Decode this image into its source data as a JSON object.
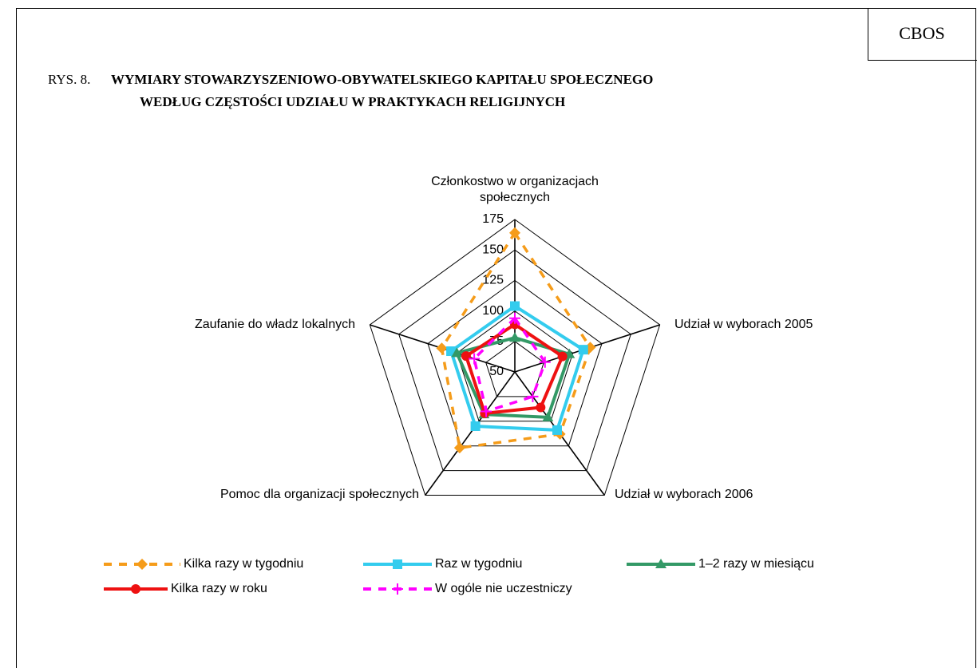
{
  "source": "CBOS",
  "chart_data": {
    "type": "radar",
    "figure_label": "RYS. 8.",
    "title": [
      "WYMIARY STOWARZYSZENIOWO-OBYWATELSKIEGO KAPITAŁU SPOŁECZNEGO",
      "WEDŁUG CZĘSTOŚCI UDZIAŁU W PRAKTYKACH RELIGIJNYCH"
    ],
    "categories": [
      "Członkostwo w organizacjach społecznych",
      "Udział w wyborach 2005",
      "Udział w wyborach 2006",
      "Pomoc dla organizacji społecznych",
      "Zaufanie do władz lokalnych"
    ],
    "ylim": [
      50,
      175
    ],
    "yticks": [
      50,
      75,
      100,
      125,
      150,
      175
    ],
    "grid": true,
    "legend": "bottom",
    "series": [
      {
        "name": "Kilka razy w tygodniu",
        "color": "#f59c1a",
        "line_style": "dashed",
        "marker": "diamond",
        "values": [
          164,
          115,
          113,
          127,
          113
        ]
      },
      {
        "name": "Raz w tygodniu",
        "color": "#33ccee",
        "line_style": "solid",
        "marker": "square",
        "values": [
          104,
          109,
          109,
          105,
          105
        ]
      },
      {
        "name": "1–2 razy w miesiącu",
        "color": "#339966",
        "line_style": "solid",
        "marker": "triangle",
        "values": [
          78,
          97,
          96,
          93,
          100
        ]
      },
      {
        "name": "Kilka razy w roku",
        "color": "#ee1111",
        "line_style": "solid",
        "marker": "circle",
        "values": [
          89,
          91,
          86,
          92,
          92
        ]
      },
      {
        "name": "W ogóle nie uczestniczy",
        "color": "#ff00ff",
        "line_style": "dashed",
        "marker": "plus",
        "values": [
          94,
          76,
          75,
          90,
          85
        ]
      }
    ]
  }
}
